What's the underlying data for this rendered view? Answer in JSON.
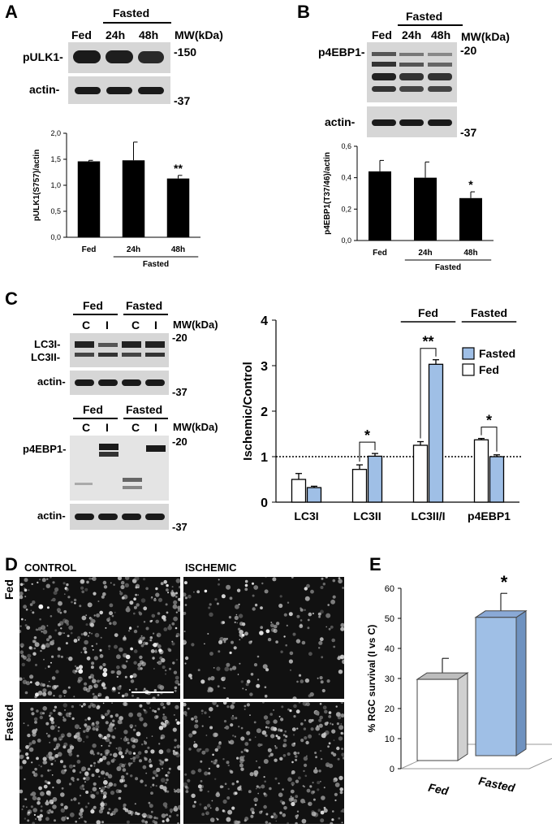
{
  "panelA": {
    "label": "A",
    "header_fasted": "Fasted",
    "lanes": [
      "Fed",
      "24h",
      "48h"
    ],
    "mw_label": "MW(kDa)",
    "blot_labels": [
      "pULK1-",
      "actin-"
    ],
    "mw_marks": [
      "-150",
      "-37"
    ],
    "chart": {
      "type": "bar",
      "ylabel": "pULK1(S757)/actin",
      "ytick_labels": [
        "0,0",
        "0,5",
        "1,0",
        "1,5",
        "2,0"
      ],
      "ylim": [
        0,
        2
      ],
      "categories": [
        "Fed",
        "24h",
        "48h"
      ],
      "values": [
        1.46,
        1.48,
        1.13
      ],
      "errors": [
        0.02,
        0.35,
        0.06
      ],
      "significance": [
        "",
        "",
        "**"
      ],
      "group_label": "Fasted"
    }
  },
  "panelB": {
    "label": "B",
    "header_fasted": "Fasted",
    "lanes": [
      "Fed",
      "24h",
      "48h"
    ],
    "mw_label": "MW(kDa)",
    "blot_labels": [
      "p4EBP1-",
      "actin-"
    ],
    "mw_marks": [
      "-20",
      "-37"
    ],
    "chart": {
      "type": "bar",
      "ylabel": "p4EBP1(T37/46)/actin",
      "ytick_labels": [
        "0,0",
        "0,2",
        "0,4",
        "0,6"
      ],
      "ylim": [
        0,
        0.6
      ],
      "categories": [
        "Fed",
        "24h",
        "48h"
      ],
      "values": [
        0.44,
        0.4,
        0.27
      ],
      "errors": [
        0.07,
        0.1,
        0.04
      ],
      "significance": [
        "",
        "",
        "*"
      ],
      "group_label": "Fasted"
    }
  },
  "panelC": {
    "label": "C",
    "groups": [
      "Fed",
      "Fasted"
    ],
    "lanes": [
      "C",
      "I",
      "C",
      "I"
    ],
    "mw_label": "MW(kDa)",
    "blot1_labels": [
      "LC3I-",
      "LC3II-",
      "actin-"
    ],
    "blot1_mw": [
      "-20",
      "-37"
    ],
    "blot2_groups": [
      "Fed",
      "Fasted"
    ],
    "blot2_lanes": [
      "C",
      "I",
      "C",
      "I"
    ],
    "blot2_labels": [
      "p4EBP1-",
      "actin-"
    ],
    "blot2_mw": [
      "-20",
      "-37"
    ],
    "chart": {
      "type": "bar",
      "ylabel": "Ischemic/Control",
      "ytick_labels": [
        "0",
        "1",
        "2",
        "3",
        "4"
      ],
      "ylim": [
        0,
        4
      ],
      "categories": [
        "LC3I",
        "LC3II",
        "LC3II/I",
        "p4EBP1"
      ],
      "series": [
        {
          "name": "Fed",
          "values": [
            0.5,
            0.72,
            1.25,
            1.37
          ],
          "errors": [
            0.13,
            0.1,
            0.08,
            0.03
          ],
          "color": "#ffffff"
        },
        {
          "name": "Fasted",
          "values": [
            0.32,
            1.01,
            3.03,
            1.0
          ],
          "errors": [
            0.03,
            0.06,
            0.1,
            0.04
          ],
          "color": "#9fbfe6"
        }
      ],
      "legend_order": [
        "Fasted",
        "Fed"
      ],
      "reference_line": 1,
      "significance": [
        "",
        "*",
        "**",
        "*"
      ],
      "group_headers": [
        "Fed",
        "Fasted"
      ]
    }
  },
  "panelD": {
    "label": "D",
    "columns": [
      "CONTROL",
      "ISCHEMIC"
    ],
    "rows": [
      "Fed",
      "Fasted"
    ]
  },
  "panelE": {
    "label": "E",
    "chart": {
      "type": "bar",
      "ylabel": "% RGC survival (I vs C)",
      "ytick_labels": [
        "0",
        "10",
        "20",
        "30",
        "40",
        "50",
        "60"
      ],
      "ylim": [
        0,
        60
      ],
      "categories": [
        "Fed",
        "Fasted"
      ],
      "values": [
        27,
        46
      ],
      "errors": [
        7,
        8
      ],
      "significance": [
        "",
        "*"
      ],
      "colors": [
        "#ffffff",
        "#9fbfe6"
      ]
    }
  }
}
